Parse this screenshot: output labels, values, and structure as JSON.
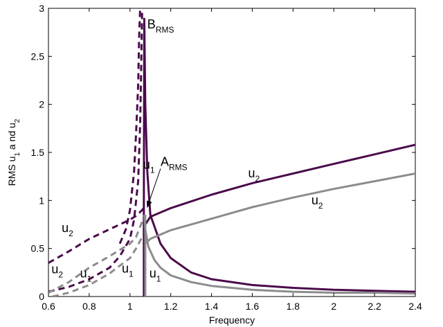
{
  "chart_data": {
    "type": "line",
    "title": "",
    "xlabel": "Frequency",
    "ylabel_parts": [
      "RMS u",
      "1",
      " a nd u",
      "2"
    ],
    "xlim": [
      0.6,
      2.4
    ],
    "ylim": [
      0,
      3
    ],
    "x_ticks": [
      0.6,
      0.8,
      1,
      1.2,
      1.4,
      1.6,
      1.8,
      2,
      2.2,
      2.4
    ],
    "x_tick_labels": [
      "0.6",
      "0.8",
      "1",
      "1.2",
      "1.4",
      "1.6",
      "1.8",
      "2",
      "2.2",
      "2.4"
    ],
    "y_ticks": [
      0,
      0.5,
      1,
      1.5,
      2,
      2.5,
      3
    ],
    "y_tick_labels": [
      "0",
      "0.5",
      "1",
      "1.5",
      "2",
      "2.5",
      "3"
    ],
    "grid": false,
    "legend": "none",
    "colors": {
      "dark": "#4a0a4a",
      "gray": "#8c8c8c"
    },
    "series": [
      {
        "curve": "dark-u2-upper-dashed",
        "color": "dark",
        "style": "dash",
        "points": [
          [
            0.6,
            0.35
          ],
          [
            0.7,
            0.47
          ],
          [
            0.8,
            0.6
          ],
          [
            0.9,
            0.7
          ],
          [
            1.0,
            0.8
          ],
          [
            1.03,
            0.84
          ],
          [
            1.06,
            0.9
          ],
          [
            1.07,
            0.93
          ]
        ]
      },
      {
        "curve": "dark-u1-lower-dashed",
        "color": "dark",
        "style": "dash",
        "points": [
          [
            0.6,
            0.05
          ],
          [
            0.7,
            0.1
          ],
          [
            0.8,
            0.18
          ],
          [
            0.9,
            0.3
          ],
          [
            0.95,
            0.42
          ],
          [
            1.0,
            0.6
          ],
          [
            1.02,
            0.8
          ],
          [
            1.04,
            1.2
          ],
          [
            1.05,
            1.8
          ],
          [
            1.055,
            2.4
          ],
          [
            1.06,
            3.0
          ]
        ]
      },
      {
        "curve": "dark-resonance-dashed",
        "color": "dark",
        "style": "dash",
        "points": [
          [
            0.95,
            0.55
          ],
          [
            0.98,
            0.7
          ],
          [
            1.0,
            0.9
          ],
          [
            1.02,
            1.3
          ],
          [
            1.03,
            1.7
          ],
          [
            1.04,
            2.2
          ],
          [
            1.045,
            2.7
          ],
          [
            1.05,
            3.0
          ]
        ]
      },
      {
        "curve": "gray-u2-dashed",
        "color": "gray",
        "style": "dash",
        "points": [
          [
            0.6,
            0.04
          ],
          [
            0.7,
            0.15
          ],
          [
            0.8,
            0.3
          ],
          [
            0.9,
            0.42
          ],
          [
            1.0,
            0.55
          ],
          [
            1.03,
            0.62
          ],
          [
            1.06,
            0.78
          ]
        ]
      },
      {
        "curve": "gray-u1-dashed",
        "color": "gray",
        "style": "dash",
        "points": [
          [
            0.62,
            0.0
          ],
          [
            0.7,
            0.04
          ],
          [
            0.8,
            0.12
          ],
          [
            0.9,
            0.24
          ],
          [
            1.0,
            0.4
          ],
          [
            1.03,
            0.5
          ],
          [
            1.06,
            0.62
          ]
        ]
      },
      {
        "curve": "dark-u2-solid",
        "color": "dark",
        "style": "solid",
        "points": [
          [
            1.075,
            0.75
          ],
          [
            1.1,
            0.83
          ],
          [
            1.2,
            0.92
          ],
          [
            1.4,
            1.06
          ],
          [
            1.6,
            1.18
          ],
          [
            1.8,
            1.28
          ],
          [
            2.0,
            1.38
          ],
          [
            2.2,
            1.48
          ],
          [
            2.4,
            1.58
          ]
        ]
      },
      {
        "curve": "dark-u1-solid",
        "color": "dark",
        "style": "solid",
        "points": [
          [
            1.07,
            2.9
          ],
          [
            1.075,
            2.0
          ],
          [
            1.085,
            1.3
          ],
          [
            1.1,
            0.85
          ],
          [
            1.15,
            0.55
          ],
          [
            1.2,
            0.4
          ],
          [
            1.3,
            0.25
          ],
          [
            1.4,
            0.18
          ],
          [
            1.6,
            0.12
          ],
          [
            1.8,
            0.09
          ],
          [
            2.0,
            0.07
          ],
          [
            2.2,
            0.06
          ],
          [
            2.4,
            0.05
          ]
        ]
      },
      {
        "curve": "dark-spike-solid",
        "color": "dark",
        "style": "solid",
        "points": [
          [
            1.068,
            0.0
          ],
          [
            1.068,
            0.9
          ],
          [
            1.07,
            2.85
          ]
        ]
      },
      {
        "curve": "gray-u2-solid",
        "color": "gray",
        "style": "solid",
        "points": [
          [
            1.075,
            0.55
          ],
          [
            1.1,
            0.6
          ],
          [
            1.2,
            0.69
          ],
          [
            1.4,
            0.81
          ],
          [
            1.6,
            0.93
          ],
          [
            1.8,
            1.03
          ],
          [
            2.0,
            1.12
          ],
          [
            2.2,
            1.2
          ],
          [
            2.4,
            1.28
          ]
        ]
      },
      {
        "curve": "gray-u1-solid",
        "color": "gray",
        "style": "solid",
        "points": [
          [
            1.07,
            0.85
          ],
          [
            1.075,
            0.7
          ],
          [
            1.09,
            0.52
          ],
          [
            1.12,
            0.38
          ],
          [
            1.15,
            0.3
          ],
          [
            1.2,
            0.22
          ],
          [
            1.3,
            0.15
          ],
          [
            1.4,
            0.11
          ],
          [
            1.6,
            0.07
          ],
          [
            1.8,
            0.05
          ],
          [
            2.0,
            0.04
          ],
          [
            2.2,
            0.04
          ],
          [
            2.4,
            0.03
          ]
        ]
      },
      {
        "curve": "gray-spike-solid",
        "color": "gray",
        "style": "solid",
        "points": [
          [
            1.075,
            0.0
          ],
          [
            1.075,
            0.85
          ]
        ]
      }
    ],
    "annotations": [
      {
        "main": "B",
        "sub": "RMS",
        "x": 1.085,
        "y": 2.79
      },
      {
        "main": "A",
        "sub": "RMS",
        "x": 1.15,
        "y": 1.36
      },
      {
        "main": "u",
        "sub": "1",
        "x": 1.065,
        "y": 1.33
      },
      {
        "main": "u",
        "sub": "2",
        "x": 1.58,
        "y": 1.24
      },
      {
        "main": "u",
        "sub": "2",
        "x": 1.89,
        "y": 0.96
      },
      {
        "main": "u",
        "sub": "2",
        "x": 0.665,
        "y": 0.67
      },
      {
        "main": "u",
        "sub": "1",
        "x": 0.96,
        "y": 0.25
      },
      {
        "main": "u",
        "sub": "1",
        "x": 1.095,
        "y": 0.2
      },
      {
        "main": "u",
        "sub": "2",
        "x": 0.615,
        "y": 0.24
      },
      {
        "main": "u",
        "sub": "1",
        "x": 0.755,
        "y": 0.2
      }
    ],
    "arrow": {
      "from": [
        1.15,
        1.36
      ],
      "to": [
        1.085,
        0.93
      ]
    }
  }
}
